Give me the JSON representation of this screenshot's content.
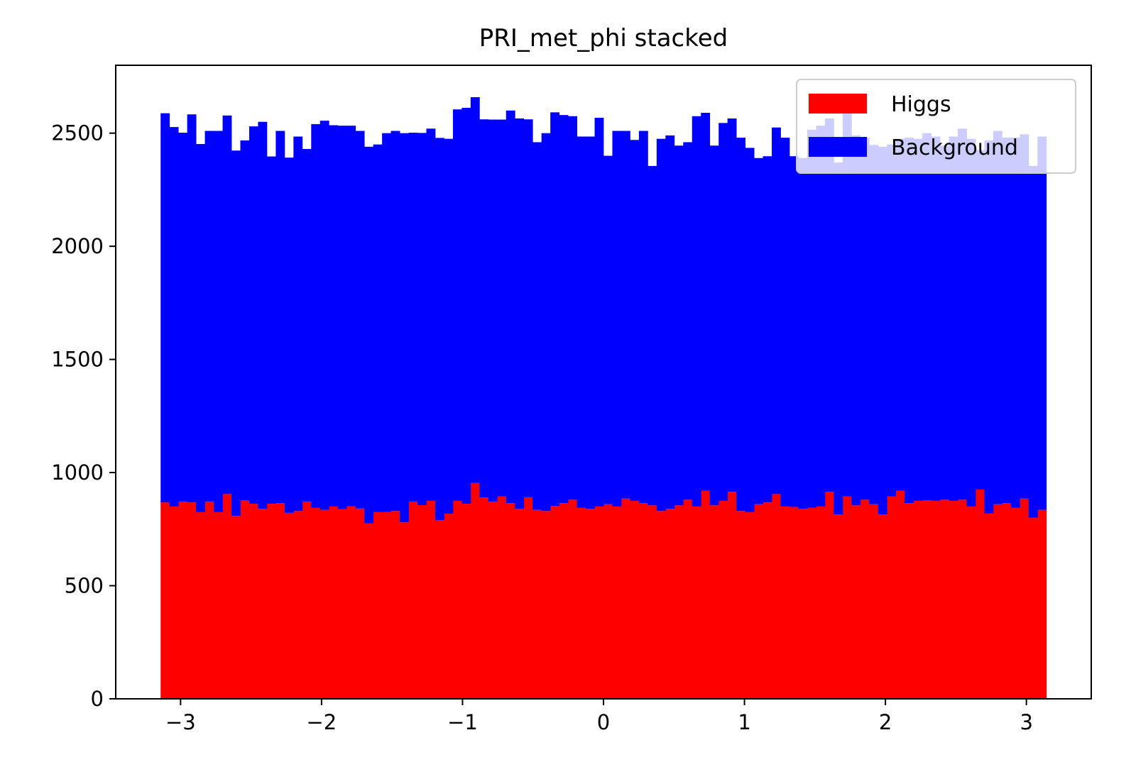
{
  "chart_data": {
    "type": "bar",
    "stacked": true,
    "title": "PRI_met_phi stacked",
    "xlabel": "",
    "ylabel": "",
    "xlim": [
      -3.46,
      3.46
    ],
    "ylim": [
      0,
      2800
    ],
    "x_ticks": [
      -3,
      -2,
      -1,
      0,
      1,
      2,
      3
    ],
    "x_tick_labels": [
      "−3",
      "−2",
      "−1",
      "0",
      "1",
      "2",
      "3"
    ],
    "y_ticks": [
      0,
      500,
      1000,
      1500,
      2000,
      2500
    ],
    "y_tick_labels": [
      "0",
      "500",
      "1000",
      "1500",
      "2000",
      "2500"
    ],
    "bins": 100,
    "bin_range": [
      -3.1416,
      3.1416
    ],
    "legend_position": "upper right",
    "series": [
      {
        "name": "Higgs",
        "color": "#ff0000",
        "values": [
          868,
          850,
          872,
          868,
          825,
          872,
          825,
          905,
          808,
          878,
          862,
          840,
          862,
          865,
          822,
          830,
          872,
          845,
          835,
          850,
          838,
          851,
          841,
          775,
          825,
          826,
          830,
          780,
          872,
          856,
          875,
          789,
          818,
          875,
          862,
          954,
          890,
          872,
          895,
          865,
          840,
          891,
          835,
          830,
          852,
          865,
          880,
          845,
          840,
          850,
          860,
          850,
          885,
          875,
          865,
          855,
          830,
          840,
          855,
          880,
          850,
          920,
          855,
          875,
          915,
          830,
          825,
          860,
          868,
          905,
          850,
          848,
          840,
          845,
          850,
          915,
          815,
          895,
          855,
          880,
          860,
          815,
          895,
          920,
          865,
          875,
          878,
          875,
          880,
          875,
          880,
          850,
          925,
          820,
          860,
          865,
          845,
          885,
          800,
          835
        ]
      },
      {
        "name": "Background",
        "color": "#0000ff",
        "values": [
          1720,
          1677,
          1630,
          1715,
          1627,
          1638,
          1685,
          1673,
          1615,
          1590,
          1668,
          1710,
          1535,
          1645,
          1570,
          1655,
          1558,
          1695,
          1720,
          1685,
          1695,
          1682,
          1669,
          1665,
          1625,
          1674,
          1680,
          1720,
          1630,
          1645,
          1645,
          1690,
          1657,
          1730,
          1750,
          1705,
          1671,
          1688,
          1665,
          1735,
          1725,
          1670,
          1625,
          1670,
          1740,
          1715,
          1695,
          1640,
          1645,
          1718,
          1540,
          1660,
          1625,
          1595,
          1645,
          1500,
          1645,
          1650,
          1590,
          1580,
          1725,
          1670,
          1590,
          1670,
          1650,
          1650,
          1610,
          1530,
          1530,
          1620,
          1630,
          1550,
          1550,
          1670,
          1683,
          1650,
          1555,
          1700,
          1635,
          1600,
          1588,
          1625,
          1555,
          1555,
          1615,
          1600,
          1622,
          1610,
          1565,
          1610,
          1640,
          1625,
          1500,
          1648,
          1650,
          1615,
          1635,
          1610,
          1555,
          1650
        ]
      }
    ]
  }
}
